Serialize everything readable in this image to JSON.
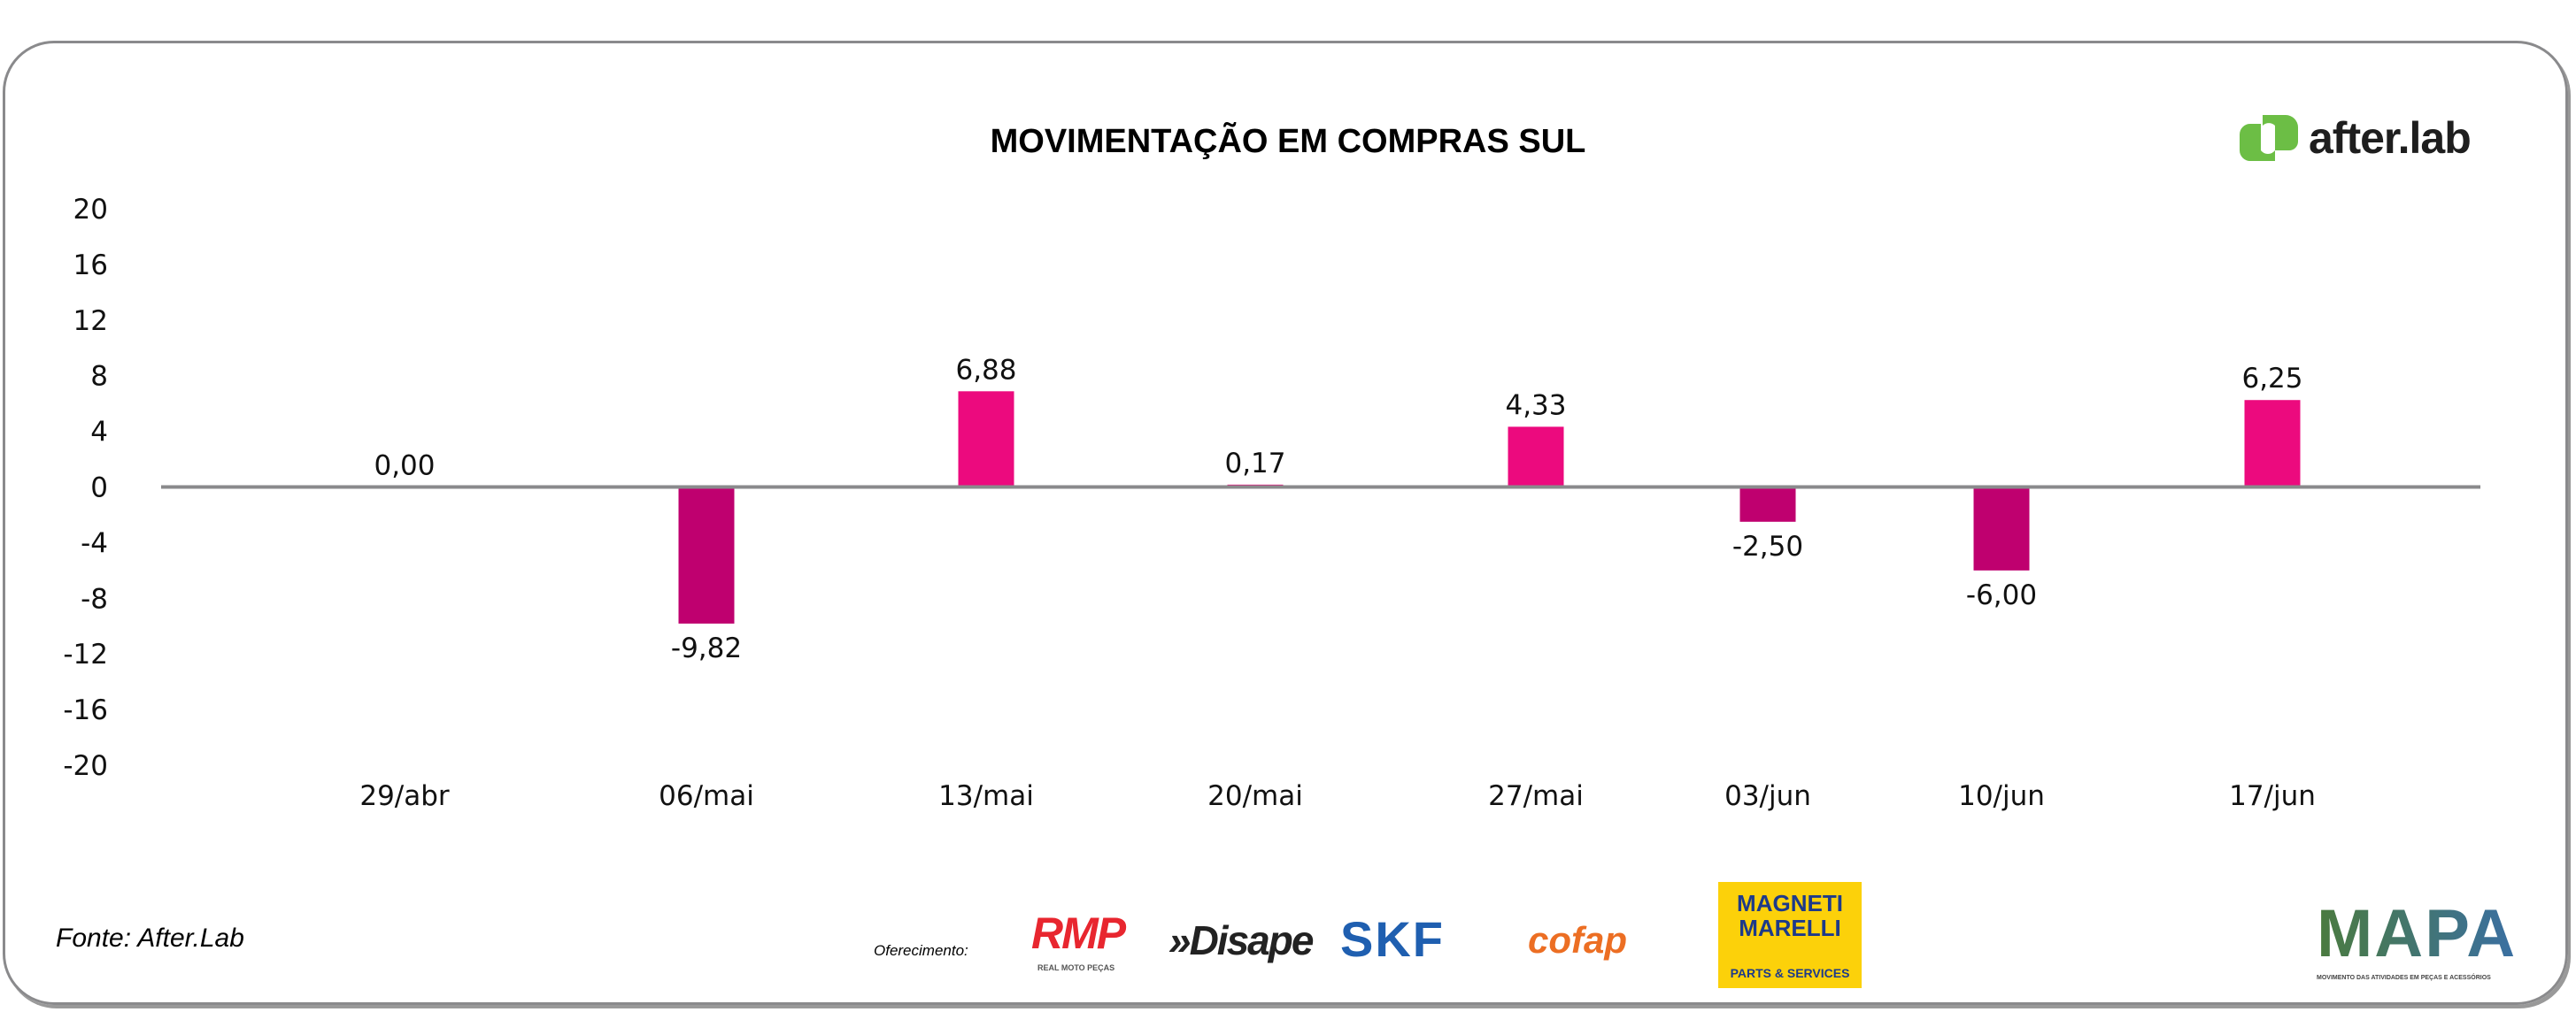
{
  "chart_data": {
    "type": "bar",
    "title": "MOVIMENTAÇÃO EM COMPRAS SUL",
    "categories": [
      "29/abr",
      "06/mai",
      "13/mai",
      "20/mai",
      "27/mai",
      "03/jun",
      "10/jun",
      "17/jun"
    ],
    "values": [
      0.0,
      -9.82,
      6.88,
      0.17,
      4.33,
      -2.5,
      -6.0,
      6.25
    ],
    "value_labels": [
      "0,00",
      "-9,82",
      "6,88",
      "0,17",
      "4,33",
      "-2,50",
      "-6,00",
      "6,25"
    ],
    "ylim": [
      -20,
      20
    ],
    "yticks": [
      20,
      16,
      12,
      8,
      4,
      0,
      -4,
      -8,
      -12,
      -16,
      -20
    ],
    "xlabel": "",
    "ylabel": "",
    "grid": false,
    "colors": {
      "positive": "#EC0A7E",
      "negative": "#BF006F",
      "axis": "#8a8a8c"
    }
  },
  "brand": {
    "logo_text": "after.lab",
    "logo_color": "#6CBE45"
  },
  "footer": {
    "source": "Fonte: After.Lab",
    "sponsor_label": "Oferecimento:",
    "sponsors": {
      "rmp": "RMP",
      "rmp_sub": "REAL MOTO PEÇAS",
      "disape": "»Disape",
      "skf": "SKF",
      "cofap": "cofap",
      "magneti": "MAGNETI MARELLI",
      "magneti_sub": "PARTS & SERVICES",
      "mapa": "MAPA",
      "mapa_sub": "MOVIMENTO DAS ATIVIDADES EM PEÇAS E ACESSÓRIOS"
    }
  }
}
